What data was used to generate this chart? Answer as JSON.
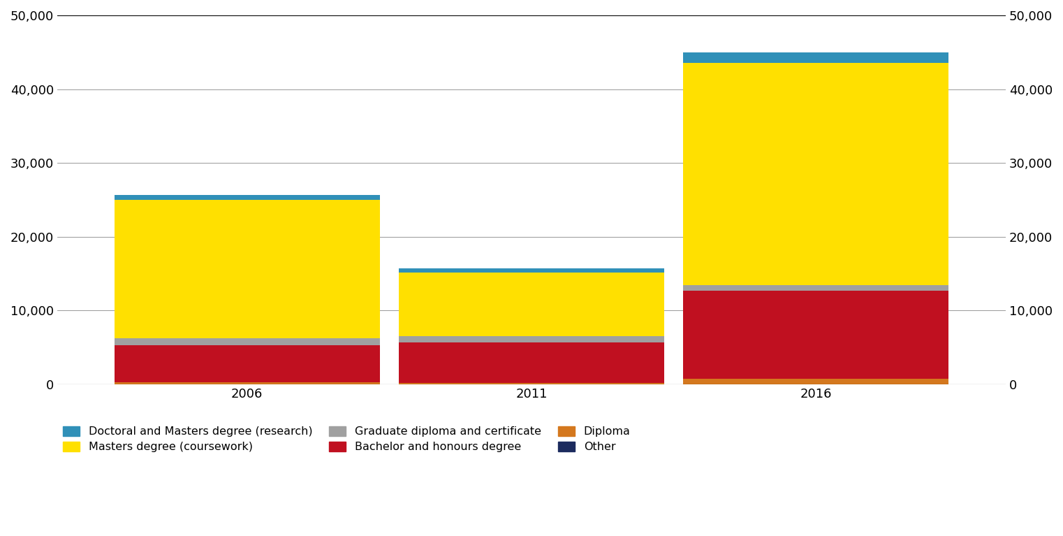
{
  "years": [
    "2006",
    "2011",
    "2016"
  ],
  "segments": {
    "Diploma": {
      "values": [
        300,
        200,
        700
      ],
      "color": "#D4781E"
    },
    "Bachelor and honours degree": {
      "values": [
        5000,
        5500,
        12000
      ],
      "color": "#C01020"
    },
    "Graduate diploma and certificate": {
      "values": [
        900,
        800,
        700
      ],
      "color": "#A0A0A0"
    },
    "Masters degree (coursework)": {
      "values": [
        18800,
        8600,
        30200
      ],
      "color": "#FFE000"
    },
    "Doctoral and Masters degree (research)": {
      "values": [
        700,
        600,
        1400
      ],
      "color": "#3090B8"
    }
  },
  "other": {
    "values": [
      0,
      0,
      0
    ],
    "color": "#1C2B5E"
  },
  "ylim": [
    0,
    50000
  ],
  "yticks": [
    0,
    10000,
    20000,
    30000,
    40000,
    50000
  ],
  "background_color": "#ffffff",
  "grid_color": "#888888",
  "bar_width": 0.28,
  "x_positions": [
    0.18,
    0.5,
    0.82
  ],
  "legend_row1": [
    [
      "Doctoral and Masters degree (research)",
      "#3090B8"
    ],
    [
      "Masters degree (coursework)",
      "#FFE000"
    ],
    [
      "Graduate diploma and certificate",
      "#A0A0A0"
    ]
  ],
  "legend_row2": [
    [
      "Bachelor and honours degree",
      "#C01020"
    ],
    [
      "Diploma",
      "#D4781E"
    ],
    [
      "Other",
      "#1C2B5E"
    ]
  ]
}
